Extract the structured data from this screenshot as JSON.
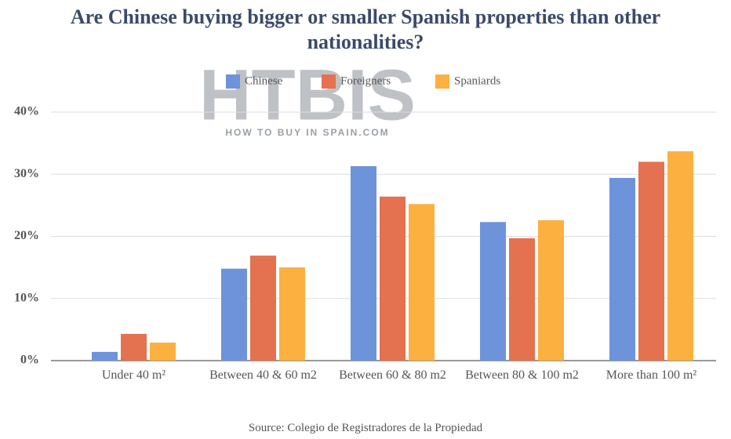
{
  "chart_data": {
    "type": "bar",
    "title": "Are Chinese buying bigger or smaller Spanish properties than other nationalities?",
    "source": "Source: Colegio de Registradores de la Propiedad",
    "watermark": {
      "logo": "HTBIS",
      "tagline": "HOW TO BUY IN SPAIN.COM"
    },
    "categories": [
      "Under 40 m²",
      "Between 40 & 60 m2",
      "Between 60 & 80 m2",
      "Between 80 & 100 m2",
      "More than 100 m²"
    ],
    "series": [
      {
        "name": "Chinese",
        "color": "#6d93db",
        "values": [
          1.4,
          14.8,
          31.3,
          22.3,
          29.4
        ]
      },
      {
        "name": "Foreigners",
        "color": "#e4714f",
        "values": [
          4.3,
          16.9,
          26.4,
          19.7,
          32.0
        ]
      },
      {
        "name": "Spaniards",
        "color": "#fbb040",
        "values": [
          2.9,
          15.0,
          25.2,
          22.6,
          33.7
        ]
      }
    ],
    "ylim": [
      0,
      40
    ],
    "yticks": [
      {
        "value": 0,
        "label": "0%"
      },
      {
        "value": 10,
        "label": "10%"
      },
      {
        "value": 20,
        "label": "20%"
      },
      {
        "value": 30,
        "label": "30%"
      },
      {
        "value": 40,
        "label": "40%"
      }
    ],
    "grid": true,
    "legend": "top"
  }
}
